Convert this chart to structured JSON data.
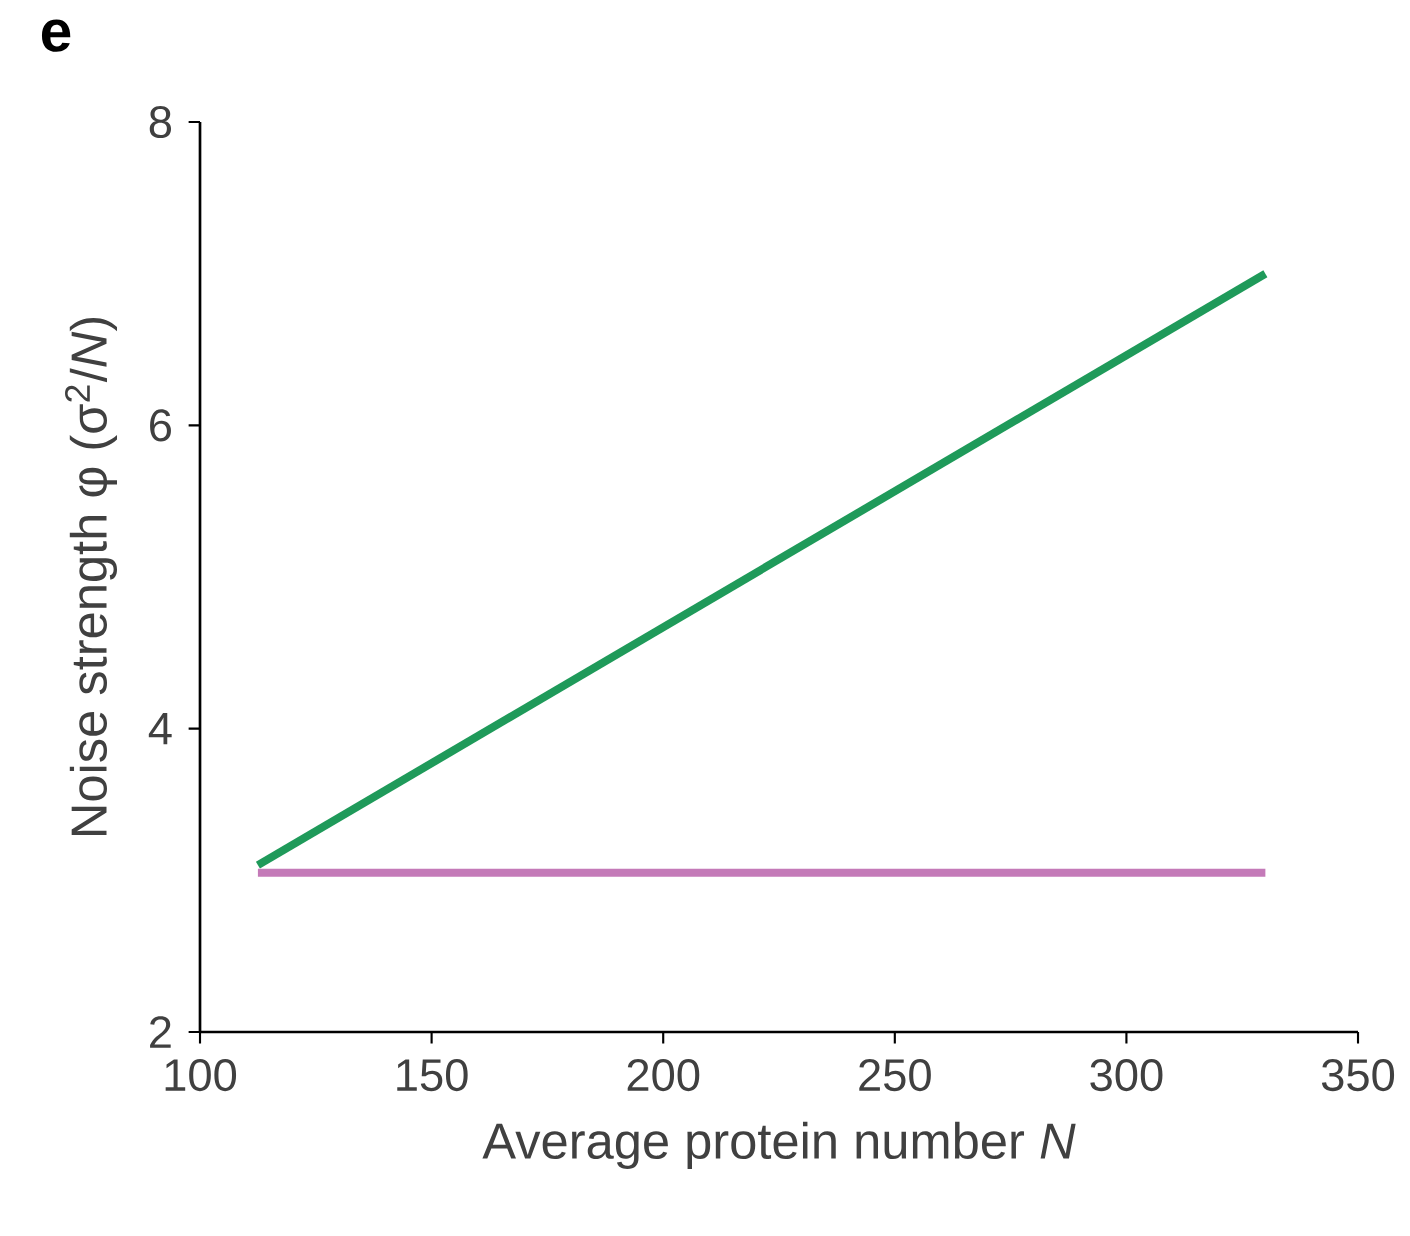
{
  "chart_data": {
    "type": "line",
    "annotations": [
      "e"
    ],
    "xlabel": "Average protein number *N*",
    "ylabel": "Noise strength φ (σ$^{2}$/*N*)",
    "xlim": [
      100,
      350
    ],
    "ylim": [
      2,
      8
    ],
    "xticks": [
      100,
      150,
      200,
      250,
      300,
      350
    ],
    "yticks": [
      2,
      4,
      6,
      8
    ],
    "x": [
      112.5,
      330
    ],
    "grid": false,
    "marker": "none",
    "line_style": "solid",
    "series": [
      {
        "color": "#1f9a5a",
        "values": [
          3.1,
          7.0
        ]
      },
      {
        "color": "#c47ab8",
        "values": [
          3.05,
          3.05
        ]
      }
    ]
  }
}
